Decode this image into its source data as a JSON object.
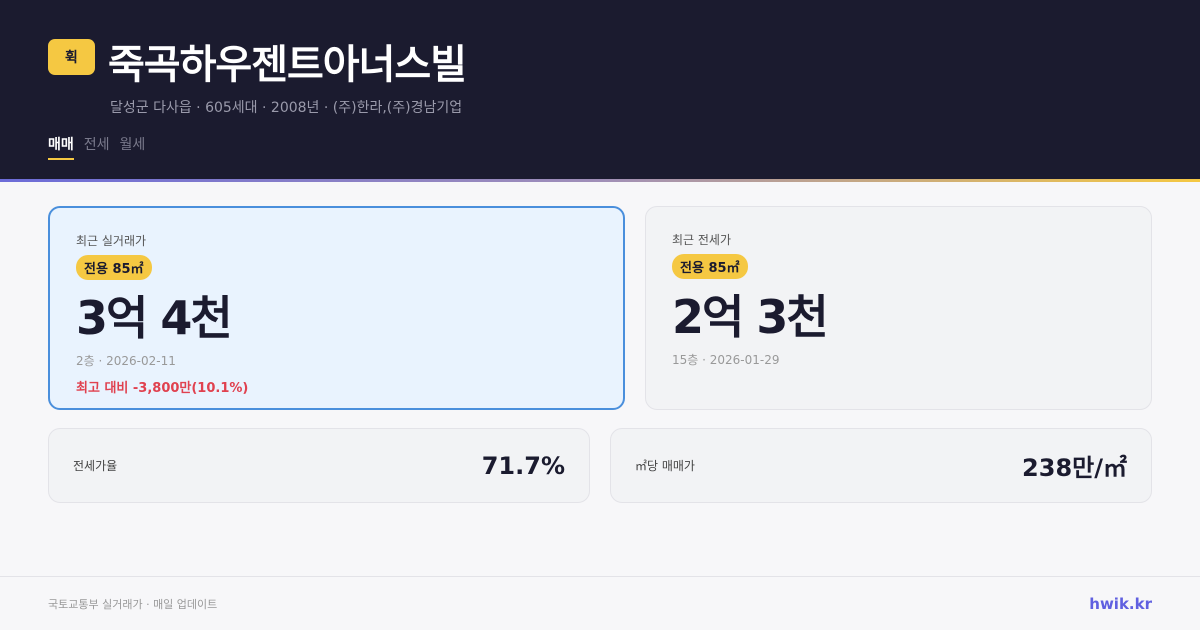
{
  "header": {
    "badge": "휙",
    "title": "죽곡하우젠트아너스빌",
    "subtitle": "달성군 다사읍 · 605세대 · 2008년 · (주)한라,(주)경남기업",
    "tabs": [
      {
        "label": "매매",
        "active": true
      },
      {
        "label": "전세",
        "active": false
      },
      {
        "label": "월세",
        "active": false
      }
    ]
  },
  "sale": {
    "label": "최근 실거래가",
    "area": "전용 85㎡",
    "price": "3억 4천",
    "meta": "2층 · 2026-02-11",
    "diff": "최고 대비 -3,800만(10.1%)"
  },
  "jeonse": {
    "label": "최근 전세가",
    "area": "전용 85㎡",
    "price": "2억 3천",
    "meta": "15층 · 2026-01-29"
  },
  "stats": [
    {
      "label": "전세가율",
      "value": "71.7%"
    },
    {
      "label": "㎡당 매매가",
      "value": "238만/㎡"
    }
  ],
  "footer": {
    "source": "국토교통부 실거래가 · 매일 업데이트",
    "brand": "hwik.kr"
  },
  "colors": {
    "header_bg": "#1b1b2f",
    "accent": "#f5c842",
    "highlight_border": "#4a8fdc",
    "negative": "#e0414f",
    "brand": "#6060e0"
  }
}
